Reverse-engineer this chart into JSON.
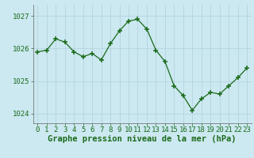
{
  "x": [
    0,
    1,
    2,
    3,
    4,
    5,
    6,
    7,
    8,
    9,
    10,
    11,
    12,
    13,
    14,
    15,
    16,
    17,
    18,
    19,
    20,
    21,
    22,
    23
  ],
  "y": [
    1025.9,
    1025.95,
    1026.3,
    1026.2,
    1025.9,
    1025.75,
    1025.85,
    1025.65,
    1026.15,
    1026.55,
    1026.85,
    1026.9,
    1026.6,
    1025.95,
    1025.6,
    1024.85,
    1024.55,
    1024.1,
    1024.45,
    1024.65,
    1024.6,
    1024.85,
    1025.1,
    1025.4
  ],
  "line_color": "#1a6b1a",
  "marker_color": "#1a6b1a",
  "bg_color": "#cce8f0",
  "grid_color": "#b0d0dc",
  "ylabel_ticks": [
    1024,
    1025,
    1026,
    1027
  ],
  "ylim": [
    1023.7,
    1027.35
  ],
  "xlim": [
    -0.5,
    23.5
  ],
  "xlabel": "Graphe pression niveau de la mer (hPa)",
  "xlabel_fontsize": 7.5,
  "tick_fontsize": 6.5,
  "label_color": "#1a6b1a"
}
